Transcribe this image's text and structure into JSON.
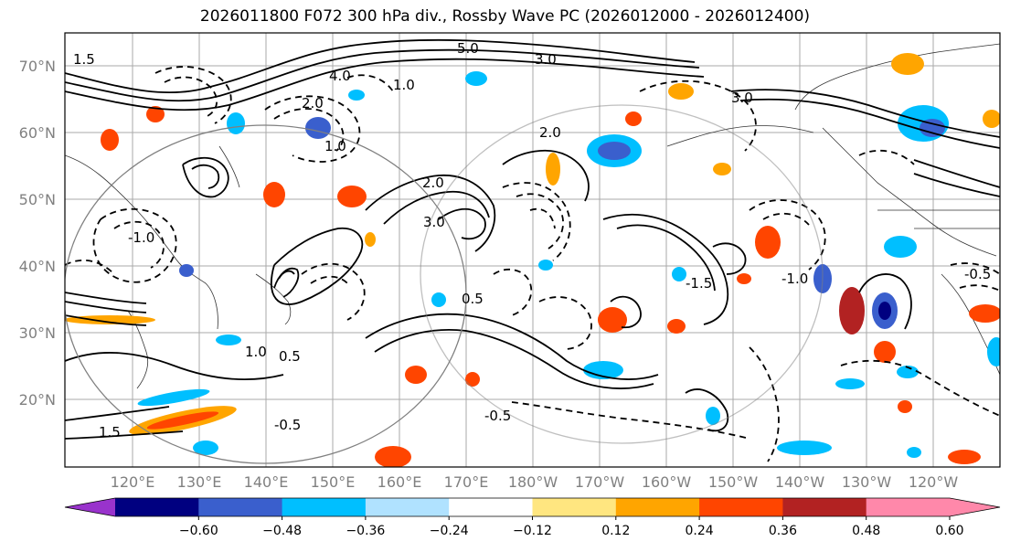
{
  "title": "2026011800 F072 300 hPa div., Rossby Wave PC (2026012000 - 2026012400)",
  "map": {
    "lat_labels": [
      "70°N",
      "60°N",
      "50°N",
      "40°N",
      "30°N",
      "20°N"
    ],
    "lon_labels": [
      "120°E",
      "130°E",
      "140°E",
      "150°E",
      "160°E",
      "170°E",
      "180°W",
      "170°W",
      "160°W",
      "150°W",
      "140°W",
      "130°W",
      "120°W"
    ],
    "contour_labels": [
      "5.0",
      "3.0",
      "3.0",
      "2.0",
      "2.0",
      "1.0",
      "4.0",
      "1.5",
      "1.0",
      "0.5",
      "0.5",
      "-0.5",
      "-0.5",
      "-1.0",
      "-1.0",
      "-1.5",
      "3.0",
      "2.0",
      "1.5",
      "1.0",
      "-0.5"
    ]
  },
  "colorbar": {
    "colors": [
      "#9933cc",
      "#000080",
      "#3a5fcd",
      "#00bfff",
      "#b0e2ff",
      "#ffffff",
      "#ffe680",
      "#ffa500",
      "#ff4500",
      "#b22222",
      "#ff88aa",
      "#ff88aa"
    ],
    "ticks": [
      "−0.60",
      "−0.48",
      "−0.36",
      "−0.24",
      "−0.12",
      "0.12",
      "0.24",
      "0.36",
      "0.48",
      "0.60"
    ]
  }
}
